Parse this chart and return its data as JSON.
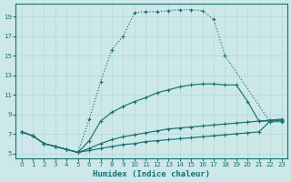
{
  "xlabel": "Humidex (Indice chaleur)",
  "bg_color": "#cce8e8",
  "grid_color": "#b8d8d8",
  "line_color": "#1a7070",
  "xlim": [
    -0.5,
    23.5
  ],
  "ylim": [
    4.5,
    20.3
  ],
  "xticks": [
    0,
    1,
    2,
    3,
    4,
    5,
    6,
    7,
    8,
    9,
    10,
    11,
    12,
    13,
    14,
    15,
    16,
    17,
    18,
    19,
    20,
    21,
    22,
    23
  ],
  "yticks": [
    5,
    7,
    9,
    11,
    13,
    15,
    17,
    19
  ],
  "curves": [
    {
      "x": [
        0,
        1,
        2,
        3,
        4,
        5,
        6,
        7,
        8,
        9,
        10,
        11,
        12,
        13,
        14,
        15,
        16,
        17,
        18,
        22,
        23
      ],
      "y": [
        7.2,
        6.8,
        6.0,
        5.7,
        5.4,
        5.1,
        8.5,
        12.3,
        15.6,
        17.0,
        19.4,
        19.5,
        19.5,
        19.6,
        19.7,
        19.7,
        19.6,
        18.7,
        15.0,
        8.2,
        8.2
      ],
      "dotted": true
    },
    {
      "x": [
        0,
        1,
        2,
        3,
        4,
        5,
        6,
        7,
        8,
        9,
        10,
        11,
        12,
        13,
        14,
        15,
        16,
        17,
        18,
        19,
        20,
        21,
        22,
        23
      ],
      "y": [
        7.2,
        6.8,
        6.0,
        5.7,
        5.4,
        5.1,
        6.3,
        8.3,
        9.2,
        9.8,
        10.3,
        10.7,
        11.2,
        11.5,
        11.8,
        12.0,
        12.1,
        12.1,
        12.0,
        12.0,
        10.3,
        8.3,
        8.3,
        8.3
      ],
      "dotted": false
    },
    {
      "x": [
        0,
        1,
        2,
        3,
        4,
        5,
        6,
        7,
        8,
        9,
        10,
        11,
        12,
        13,
        14,
        15,
        16,
        17,
        18,
        19,
        20,
        21,
        22,
        23
      ],
      "y": [
        7.2,
        6.8,
        6.0,
        5.7,
        5.4,
        5.1,
        5.5,
        6.0,
        6.4,
        6.7,
        6.9,
        7.1,
        7.3,
        7.5,
        7.6,
        7.7,
        7.8,
        7.9,
        8.0,
        8.1,
        8.2,
        8.3,
        8.4,
        8.5
      ],
      "dotted": false
    },
    {
      "x": [
        0,
        1,
        2,
        3,
        4,
        5,
        6,
        7,
        8,
        9,
        10,
        11,
        12,
        13,
        14,
        15,
        16,
        17,
        18,
        19,
        20,
        21,
        22,
        23
      ],
      "y": [
        7.2,
        6.8,
        6.0,
        5.7,
        5.4,
        5.1,
        5.3,
        5.5,
        5.7,
        5.9,
        6.0,
        6.2,
        6.3,
        6.4,
        6.5,
        6.6,
        6.7,
        6.8,
        6.9,
        7.0,
        7.1,
        7.2,
        8.3,
        8.4
      ],
      "dotted": false
    }
  ]
}
